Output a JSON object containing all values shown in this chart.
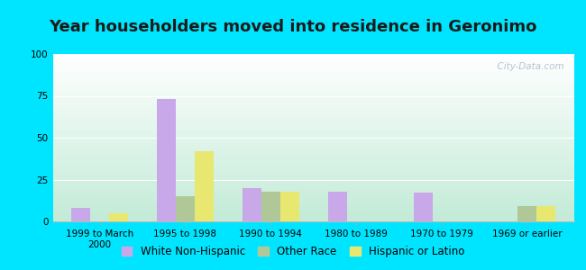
{
  "title": "Year householders moved into residence in Geronimo",
  "categories": [
    "1999 to March\n2000",
    "1995 to 1998",
    "1990 to 1994",
    "1980 to 1989",
    "1970 to 1979",
    "1969 or earlier"
  ],
  "series": {
    "White Non-Hispanic": [
      8,
      73,
      20,
      18,
      17,
      0
    ],
    "Other Race": [
      0,
      15,
      18,
      0,
      0,
      9
    ],
    "Hispanic or Latino": [
      5,
      42,
      18,
      0,
      0,
      9
    ]
  },
  "colors": {
    "White Non-Hispanic": "#c8a8e8",
    "Other Race": "#b0c898",
    "Hispanic or Latino": "#e8e870"
  },
  "ylim": [
    0,
    100
  ],
  "yticks": [
    0,
    25,
    50,
    75,
    100
  ],
  "bar_width": 0.22,
  "background_outer": "#00e5ff",
  "title_fontsize": 13,
  "legend_fontsize": 8.5,
  "tick_fontsize": 7.5,
  "watermark": "  City-Data.com"
}
